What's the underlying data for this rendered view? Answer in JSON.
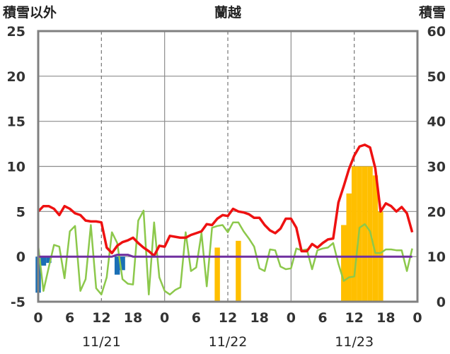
{
  "chart_data": {
    "type": "line",
    "title": "蘭越",
    "left_axis_label": "積雪以外",
    "right_axis_label": "積雪",
    "left_ylim": [
      -5,
      25
    ],
    "left_yticks": [
      "-5",
      "0",
      "5",
      "10",
      "15",
      "20",
      "25"
    ],
    "right_ylim": [
      0,
      60
    ],
    "right_yticks": [
      "0",
      "10",
      "20",
      "30",
      "40",
      "50",
      "60"
    ],
    "x_range_hours": [
      0,
      72
    ],
    "x_ticks": [
      "0",
      "6",
      "12",
      "18",
      "0",
      "6",
      "12",
      "18",
      "0",
      "6",
      "12",
      "18",
      "0"
    ],
    "date_labels": [
      "11/21",
      "11/22",
      "11/23"
    ],
    "grid": "day boundaries solid, noon dashed",
    "colors": {
      "temperature": "#ee1111",
      "wind": "#8cc84b",
      "precip_snow": "#ffbf00",
      "precip_rain": "#1a6fb5",
      "sunshine": "#7030a0",
      "frame": "#808080"
    },
    "series": [
      {
        "axis": "left",
        "color": "#ee1111",
        "x": [
          0,
          1,
          2,
          3,
          4,
          5,
          6,
          7,
          8,
          9,
          10,
          11,
          12,
          13,
          14,
          15,
          16,
          17,
          18,
          19,
          20,
          21,
          22,
          23,
          24,
          25,
          26,
          27,
          28,
          29,
          30,
          31,
          32,
          33,
          34,
          35,
          36,
          37,
          38,
          39,
          40,
          41,
          42,
          43,
          44,
          45,
          46,
          47,
          48,
          49,
          50,
          51,
          52,
          53,
          54,
          55,
          56,
          57,
          58,
          59,
          60,
          61,
          62,
          63,
          64,
          65,
          66,
          67,
          68,
          69,
          70,
          71
        ],
        "values": [
          5.0,
          5.6,
          5.6,
          5.3,
          4.6,
          5.6,
          5.3,
          4.8,
          4.6,
          4.0,
          3.9,
          3.9,
          3.8,
          1.0,
          0.4,
          1.2,
          1.6,
          1.8,
          2.1,
          1.5,
          1.0,
          0.6,
          0.1,
          1.2,
          1.1,
          2.3,
          2.2,
          2.1,
          2.1,
          2.4,
          2.6,
          2.8,
          3.6,
          3.5,
          4.2,
          4.6,
          4.5,
          5.3,
          5.0,
          4.9,
          4.7,
          4.3,
          4.3,
          3.5,
          2.9,
          2.6,
          3.1,
          4.2,
          4.2,
          3.2,
          0.6,
          0.6,
          1.4,
          1.0,
          1.5,
          1.9,
          2.0,
          6.0,
          7.8,
          9.7,
          11.2,
          12.2,
          12.4,
          12.1,
          9.8,
          5.0,
          5.9,
          5.6,
          5.0,
          5.5,
          4.8,
          2.7
        ]
      },
      {
        "axis": "left",
        "color": "#8cc84b",
        "x": [
          0,
          1,
          2,
          3,
          4,
          5,
          6,
          7,
          8,
          9,
          10,
          11,
          12,
          13,
          14,
          15,
          16,
          17,
          18,
          19,
          20,
          21,
          22,
          23,
          24,
          25,
          26,
          27,
          28,
          29,
          30,
          31,
          32,
          33,
          34,
          35,
          36,
          37,
          38,
          39,
          40,
          41,
          42,
          43,
          44,
          45,
          46,
          47,
          48,
          49,
          50,
          51,
          52,
          53,
          54,
          55,
          56,
          57,
          58,
          59,
          60,
          61,
          62,
          63,
          64,
          65,
          66,
          67,
          68,
          69,
          70,
          71
        ],
        "values": [
          1.2,
          -3.8,
          -1.2,
          1.3,
          1.1,
          -2.4,
          2.8,
          3.4,
          -3.8,
          -2.5,
          3.5,
          -3.5,
          -4.2,
          -2.3,
          2.7,
          1.5,
          -2.5,
          -3.0,
          -3.1,
          4.0,
          5.1,
          -4.2,
          3.8,
          -2.3,
          -3.8,
          -4.2,
          -3.7,
          -3.4,
          2.7,
          -1.6,
          -1.2,
          2.6,
          -3.3,
          3.2,
          3.4,
          3.5,
          2.7,
          3.8,
          3.8,
          2.8,
          2.0,
          1.1,
          -1.3,
          -1.6,
          0.8,
          0.7,
          -1.1,
          -1.4,
          -1.3,
          0.9,
          0.7,
          0.8,
          -1.4,
          0.7,
          0.9,
          1.0,
          1.5,
          -0.8,
          -2.7,
          -2.3,
          -2.2,
          3.2,
          3.6,
          2.8,
          0.4,
          0.4,
          0.8,
          0.8,
          0.7,
          0.7,
          -1.6,
          0.9
        ]
      },
      {
        "axis": "left",
        "color": "#7030a0",
        "x": [
          0,
          1,
          2,
          3,
          4,
          5,
          6,
          7,
          8,
          9,
          10,
          11,
          12,
          13,
          14,
          15,
          16,
          17,
          18,
          19,
          20,
          21,
          22,
          23,
          24,
          25,
          26,
          27,
          28,
          29,
          30,
          31,
          32,
          33,
          34,
          35,
          36,
          37,
          38,
          39,
          40,
          41,
          42,
          43,
          44,
          45,
          46,
          47,
          48,
          49,
          50,
          51,
          52,
          53,
          54,
          55,
          56,
          57,
          58,
          59,
          60,
          61,
          62,
          63,
          64,
          65,
          66,
          67,
          68,
          69,
          70,
          71
        ],
        "values": [
          0,
          0,
          0,
          0,
          0,
          0,
          0,
          0,
          0,
          0,
          0,
          0,
          0,
          0,
          0,
          0.2,
          0.2,
          0.2,
          0,
          0,
          0,
          0,
          0,
          0,
          0,
          0,
          0,
          0,
          0,
          0,
          0,
          0,
          0,
          0,
          0,
          0,
          0,
          0,
          0,
          0,
          0,
          0,
          0,
          0,
          0,
          0,
          0,
          0,
          0,
          0,
          0,
          0,
          0,
          0,
          0,
          0,
          0,
          0,
          0,
          0,
          0,
          0,
          0,
          0,
          0,
          0,
          0,
          0,
          0,
          0,
          0,
          0
        ]
      },
      {
        "axis": "right",
        "color": "#ffbf00",
        "bars": true,
        "x": [
          34,
          38,
          58,
          59,
          60,
          61,
          62,
          63,
          64,
          65
        ],
        "values": [
          12,
          13.5,
          17,
          24,
          30,
          30,
          30,
          30,
          28,
          20
        ]
      },
      {
        "axis": "left",
        "color": "#1a6fb5",
        "bars": true,
        "x": [
          0,
          1,
          2,
          15,
          16
        ],
        "values": [
          -4.0,
          -1.0,
          -0.7,
          -2.0,
          -1.5
        ]
      }
    ]
  }
}
